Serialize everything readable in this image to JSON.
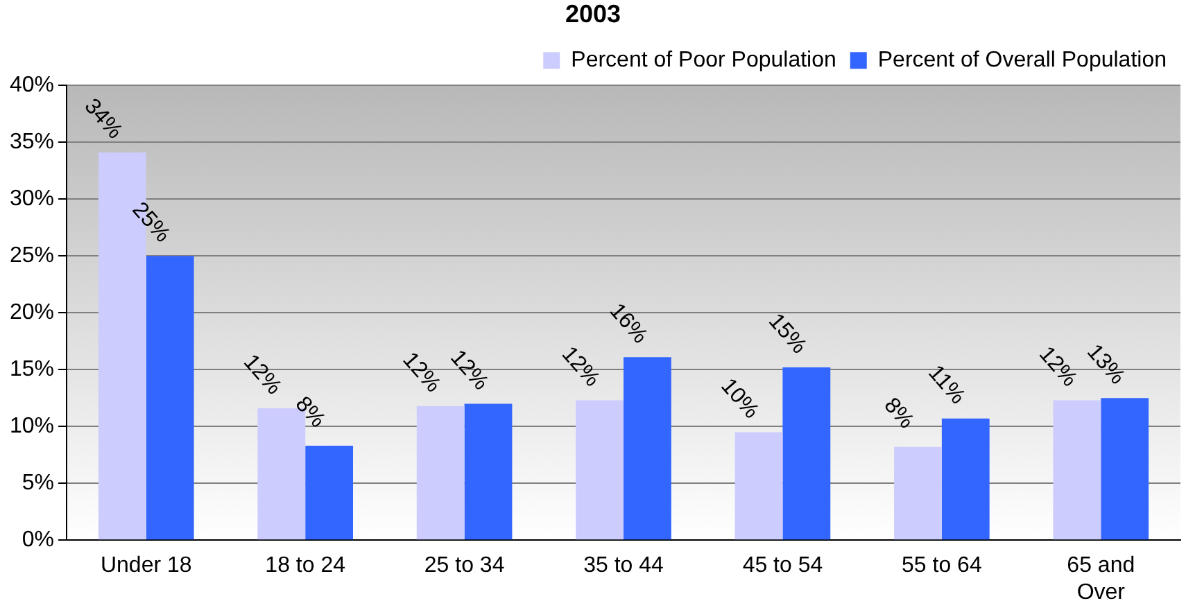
{
  "chart_data": {
    "type": "bar",
    "title": "2003",
    "categories": [
      "Under 18",
      "18 to 24",
      "25 to 34",
      "35 to 44",
      "45 to 54",
      "55 to 64",
      "65 and Over"
    ],
    "series": [
      {
        "name": "Percent of Poor Population",
        "color": "#ccccff",
        "values": [
          34.1,
          11.6,
          11.8,
          12.3,
          9.5,
          8.2,
          12.3
        ],
        "value_labels": [
          "34%",
          "12%",
          "12%",
          "12%",
          "10%",
          "8%",
          "12%"
        ]
      },
      {
        "name": "Percent of Overall Population",
        "color": "#3366ff",
        "values": [
          25.0,
          8.3,
          12.0,
          16.1,
          15.2,
          10.7,
          12.5
        ],
        "value_labels": [
          "25%",
          "8%",
          "12%",
          "16%",
          "15%",
          "11%",
          "13%"
        ]
      }
    ],
    "ylim": [
      0,
      40
    ],
    "yticks": [
      {
        "value": 0,
        "label": "0%"
      },
      {
        "value": 5,
        "label": "5%"
      },
      {
        "value": 10,
        "label": "10%"
      },
      {
        "value": 15,
        "label": "15%"
      },
      {
        "value": 20,
        "label": "20%"
      },
      {
        "value": 25,
        "label": "25%"
      },
      {
        "value": 30,
        "label": "30%"
      },
      {
        "value": 35,
        "label": "35%"
      },
      {
        "value": 40,
        "label": "40%"
      }
    ],
    "grid": "y",
    "legend": "top right"
  }
}
